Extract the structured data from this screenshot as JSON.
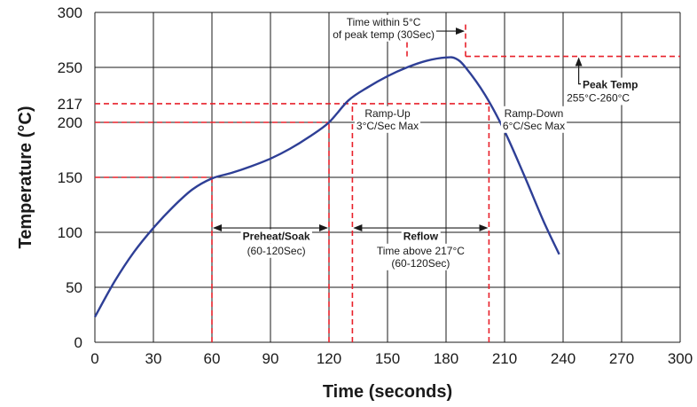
{
  "chart_data": {
    "type": "line",
    "title": "",
    "xlabel": "Time (seconds)",
    "ylabel": "Temperature (°C)",
    "xlim": [
      0,
      300
    ],
    "ylim": [
      0,
      300
    ],
    "grid": true,
    "xticks": [
      0,
      30,
      60,
      90,
      120,
      150,
      180,
      210,
      240,
      270,
      300
    ],
    "xtick_labels": [
      "0",
      "30",
      "60",
      "90",
      "120",
      "150",
      "180",
      "210",
      "240",
      "270",
      "300"
    ],
    "yticks": [
      0,
      50,
      100,
      150,
      200,
      217,
      250,
      300
    ],
    "ytick_labels": [
      "0",
      "50",
      "100",
      "150",
      "200",
      "217",
      "250",
      "300"
    ],
    "colors": {
      "curve": "#2e3f96",
      "markers": "#e8202a",
      "grid": "#1a1a1a"
    },
    "series": [
      {
        "x": [
          0,
          10,
          20,
          30,
          40,
          50,
          60,
          70,
          80,
          90,
          100,
          110,
          120,
          130,
          140,
          150,
          160,
          170,
          180,
          185,
          190,
          200,
          210,
          220,
          230,
          238
        ],
        "y": [
          23,
          55,
          82,
          104,
          123,
          139,
          149,
          154,
          160,
          167,
          176,
          187,
          200,
          220,
          232,
          242,
          250,
          256,
          259,
          258,
          250,
          225,
          192,
          152,
          110,
          80
        ]
      }
    ],
    "reference_lines": [
      {
        "orientation": "horizontal",
        "y": 150,
        "x_from": 0,
        "x_to": 60
      },
      {
        "orientation": "horizontal",
        "y": 200,
        "x_from": 0,
        "x_to": 120
      },
      {
        "orientation": "horizontal",
        "y": 217,
        "x_from": 0,
        "x_to": 202
      },
      {
        "orientation": "horizontal",
        "y": 260,
        "x_from": 190,
        "x_to": 300
      },
      {
        "orientation": "vertical",
        "x": 60,
        "y_from": 0,
        "y_to": 150
      },
      {
        "orientation": "vertical",
        "x": 120,
        "y_from": 0,
        "y_to": 200
      },
      {
        "orientation": "vertical",
        "x": 132,
        "y_from": 0,
        "y_to": 217
      },
      {
        "orientation": "vertical",
        "x": 202,
        "y_from": 0,
        "y_to": 217
      },
      {
        "orientation": "vertical",
        "x": 160,
        "y_from": 260,
        "y_to": 290
      },
      {
        "orientation": "vertical",
        "x": 190,
        "y_from": 260,
        "y_to": 290
      }
    ],
    "spans": [
      {
        "x_from": 60,
        "x_to": 120,
        "y": 104
      },
      {
        "x_from": 132,
        "x_to": 202,
        "y": 104
      },
      {
        "x_from": 160,
        "x_to": 190,
        "y": 283
      }
    ],
    "peak_arrow": {
      "x": 248,
      "y_from": 235,
      "y_to": 260
    },
    "annotations": [
      {
        "lines": [
          "Time within 5°C",
          "of peak temp (30Sec)"
        ],
        "x": 148,
        "y": 288,
        "align": "middle",
        "bold": false
      },
      {
        "lines": [
          "Ramp-Up",
          "3°C/Sec Max"
        ],
        "x": 150,
        "y": 205,
        "align": "middle",
        "bold": false
      },
      {
        "lines": [
          "Ramp-Down",
          "6°C/Sec Max"
        ],
        "x": 225,
        "y": 205,
        "align": "middle",
        "bold": false
      },
      {
        "lines": [
          "Peak Temp"
        ],
        "x": 250,
        "y": 231,
        "align": "start",
        "bold": true
      },
      {
        "lines": [
          "255°C-260°C"
        ],
        "x": 258,
        "y": 219,
        "align": "middle",
        "bold": false
      },
      {
        "lines": [
          "Preheat/Soak"
        ],
        "x": 93,
        "y": 93,
        "align": "middle",
        "bold": true
      },
      {
        "lines": [
          "(60-120Sec)"
        ],
        "x": 93,
        "y": 80,
        "align": "middle",
        "bold": false
      },
      {
        "lines": [
          "Reflow"
        ],
        "x": 167,
        "y": 93,
        "align": "middle",
        "bold": true
      },
      {
        "lines": [
          "Time above 217°C",
          "(60-120Sec)"
        ],
        "x": 167,
        "y": 80,
        "align": "middle",
        "bold": false
      }
    ]
  }
}
